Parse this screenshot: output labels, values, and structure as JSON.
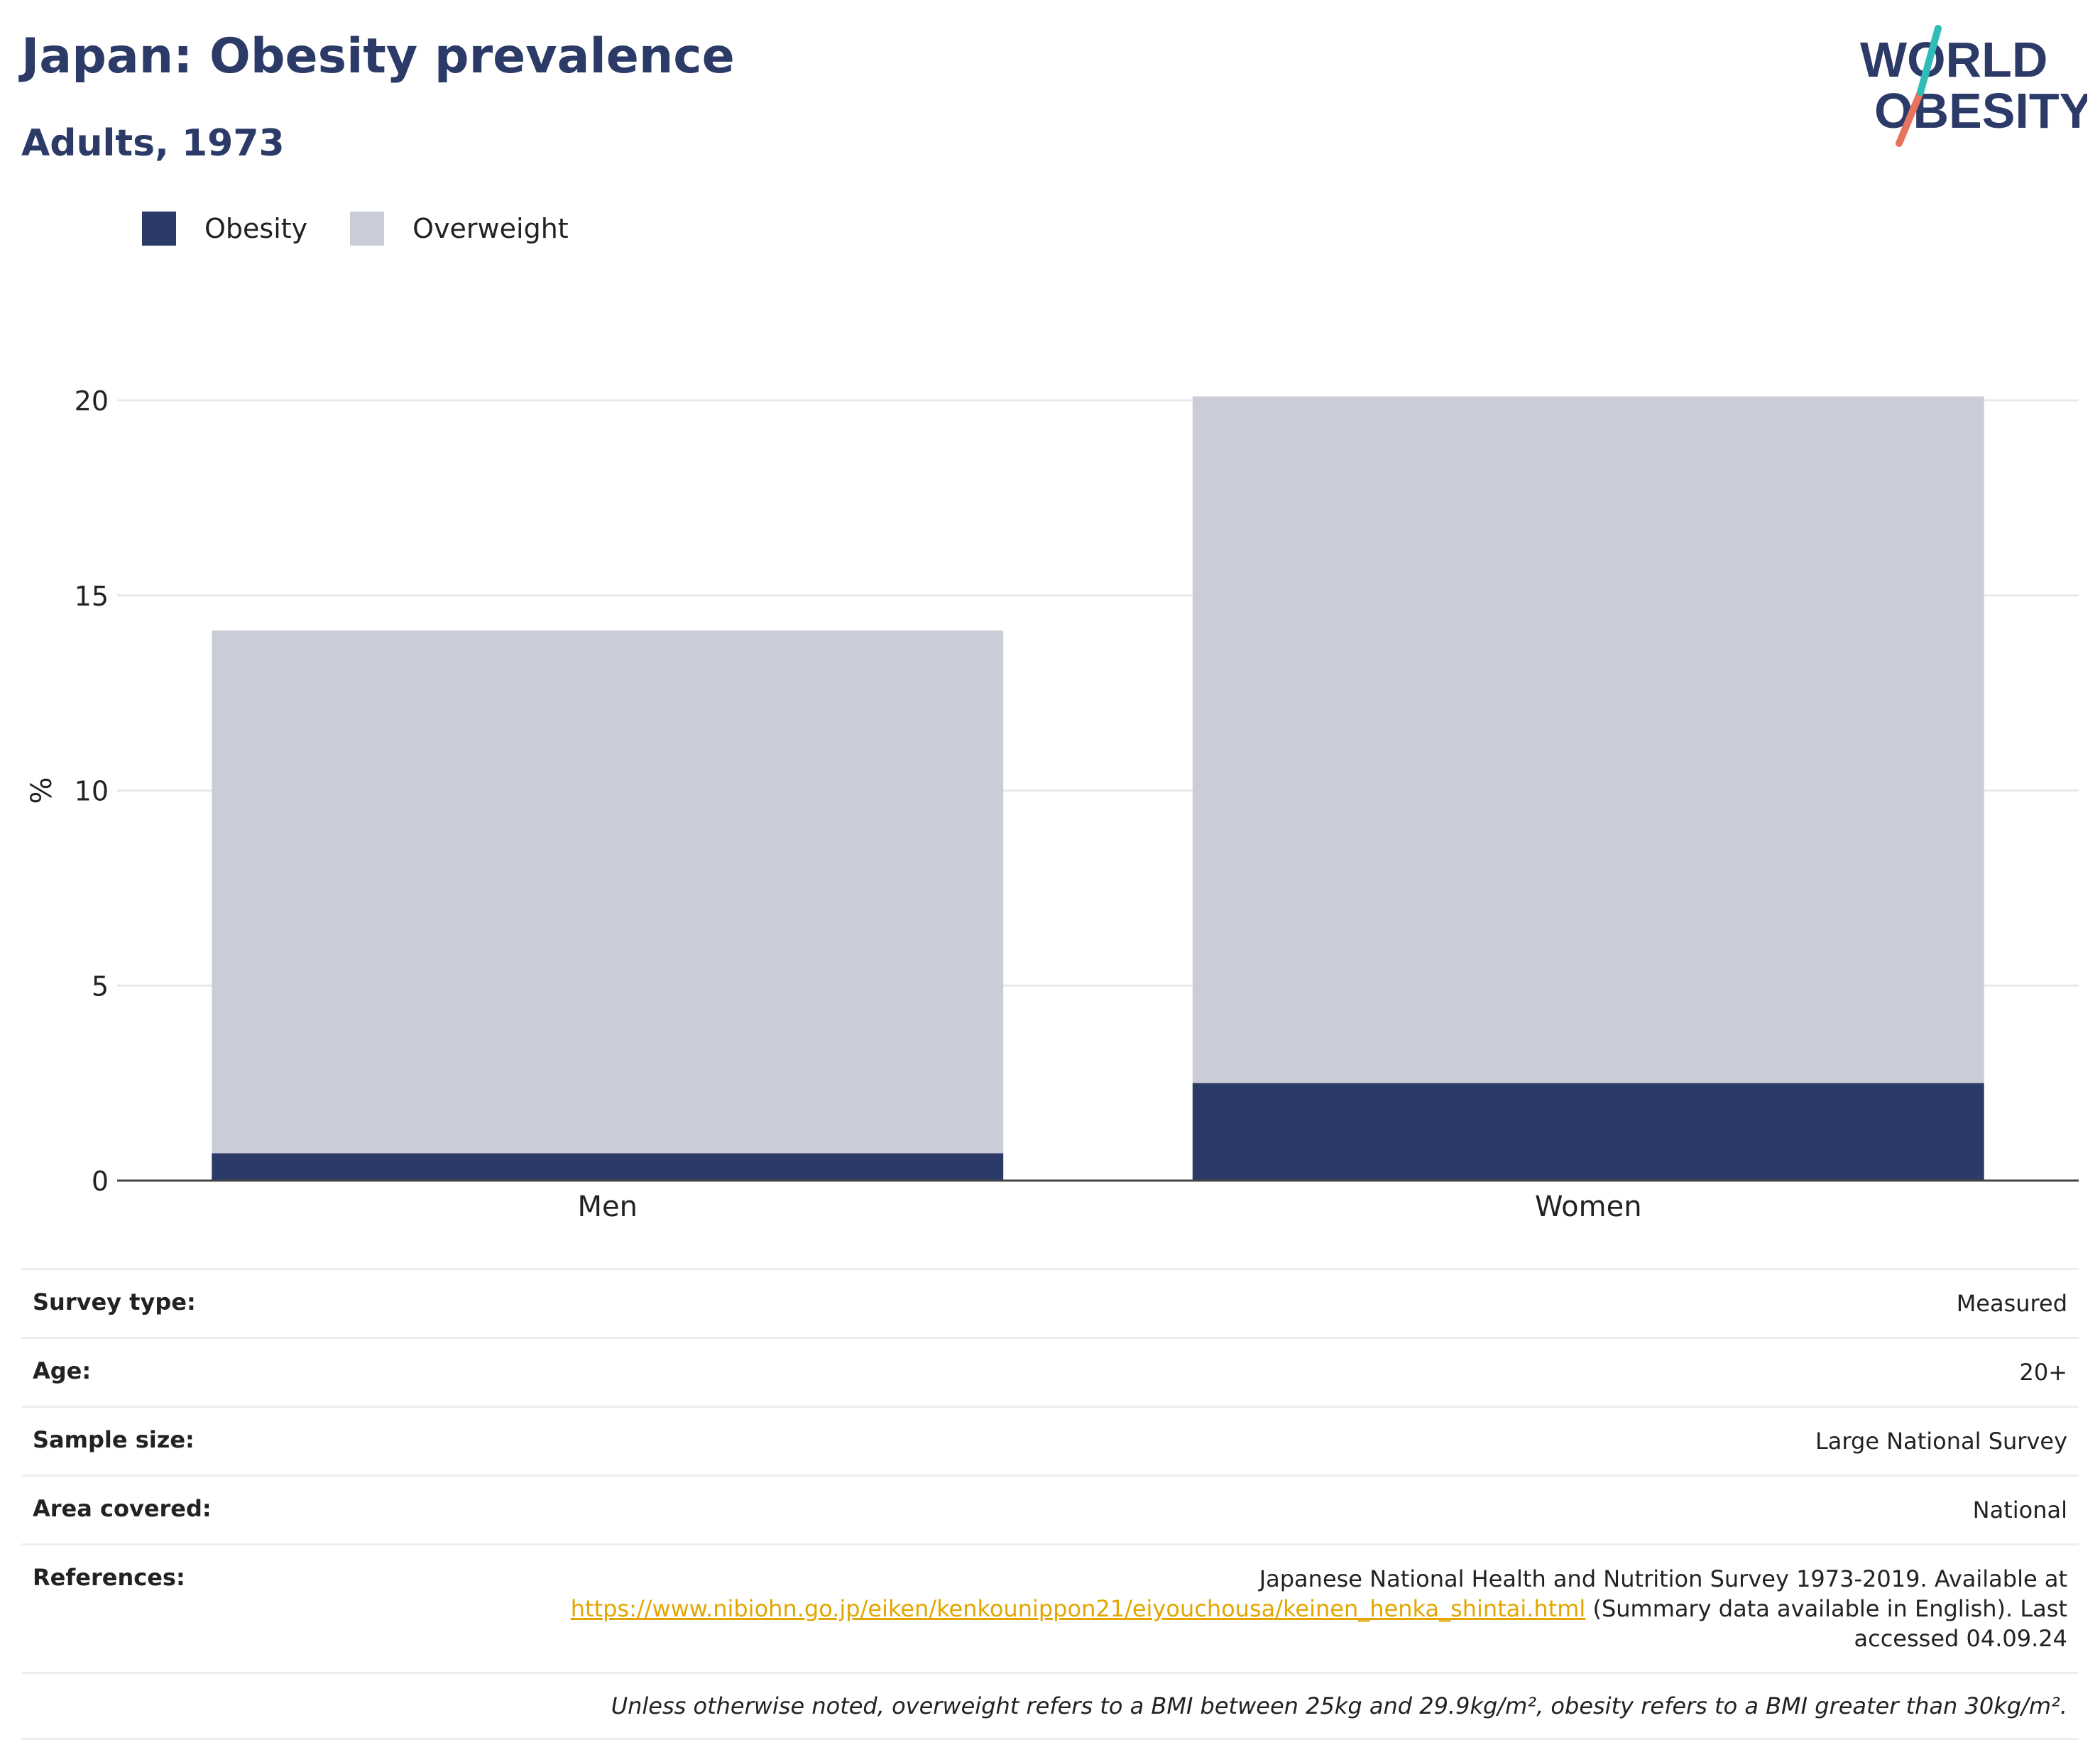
{
  "header": {
    "title": "Japan: Obesity prevalence",
    "subtitle": "Adults, 1973"
  },
  "logo": {
    "line1": "WORLD",
    "line2": "OBESITY"
  },
  "colors": {
    "obesity": "#2b3a67",
    "overweight": "#cacdd8",
    "accent_teal": "#2fbcb7",
    "accent_coral": "#e8735f",
    "link": "#e2a600"
  },
  "chart_data": {
    "type": "bar",
    "stacked": true,
    "categories": [
      "Men",
      "Women"
    ],
    "series": [
      {
        "name": "Obesity",
        "values": [
          0.7,
          2.5
        ]
      },
      {
        "name": "Overweight",
        "values": [
          13.4,
          17.6
        ]
      }
    ],
    "ylabel": "%",
    "ylim": [
      0,
      22
    ],
    "yticks": [
      0,
      5,
      10,
      15,
      20
    ],
    "grid": true,
    "legend": "top-left"
  },
  "meta": {
    "survey_type": {
      "label": "Survey type:",
      "value": "Measured"
    },
    "age": {
      "label": "Age:",
      "value": "20+"
    },
    "sample_size": {
      "label": "Sample size:",
      "value": "Large National Survey"
    },
    "area": {
      "label": "Area covered:",
      "value": "National"
    },
    "references": {
      "label": "References:",
      "text_before": "Japanese National Health and Nutrition Survey 1973-2019. Available at",
      "link": "https://www.nibiohn.go.jp/eiken/kenkounippon21/eiyouchousa/keinen_henka_shintai.html",
      "text_after": "(Summary data available in English). Last accessed 04.09.24"
    },
    "footnote": "Unless otherwise noted, overweight refers to a BMI between 25kg and 29.9kg/m², obesity refers to a BMI greater than 30kg/m²."
  }
}
